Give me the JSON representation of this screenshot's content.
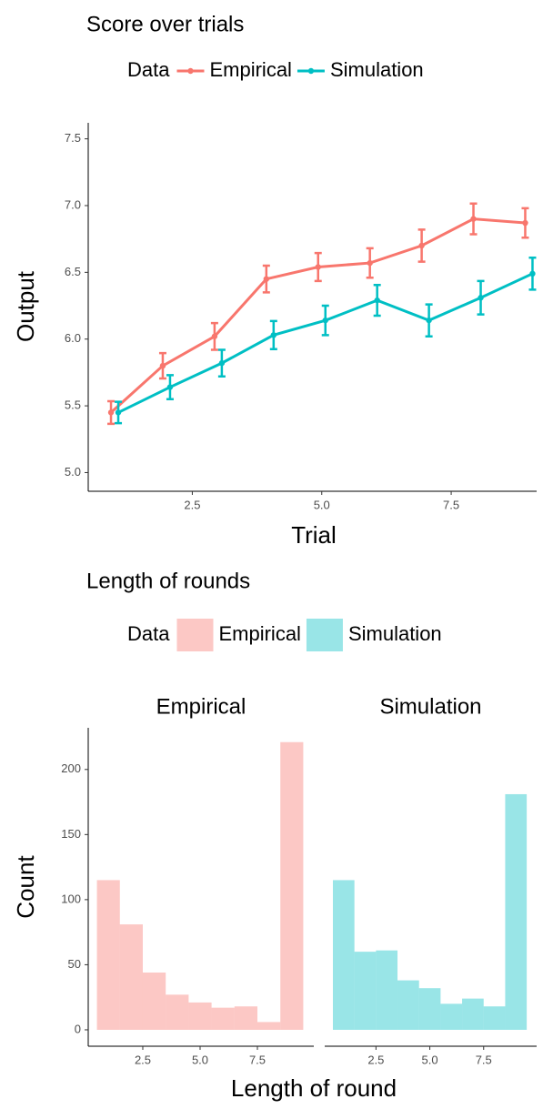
{
  "chart_data": [
    {
      "type": "line",
      "title": "Score over trials",
      "legend_title": "Data",
      "x_label": "Trial",
      "y_label": "Output",
      "x": [
        1,
        2,
        3,
        4,
        5,
        6,
        7,
        8,
        9
      ],
      "series": [
        {
          "name": "Empirical",
          "color": "#F8766D",
          "values": [
            5.45,
            5.8,
            6.02,
            6.45,
            6.54,
            6.57,
            6.7,
            6.9,
            6.87
          ],
          "errors": [
            0.085,
            0.095,
            0.1,
            0.1,
            0.105,
            0.11,
            0.12,
            0.115,
            0.11
          ]
        },
        {
          "name": "Simulation",
          "color": "#00BFC4",
          "values": [
            5.45,
            5.64,
            5.82,
            6.03,
            6.14,
            6.29,
            6.14,
            6.31,
            6.49
          ],
          "errors": [
            0.08,
            0.09,
            0.1,
            0.105,
            0.11,
            0.115,
            0.12,
            0.125,
            0.12
          ]
        }
      ],
      "xlim": [
        0.49,
        9.15
      ],
      "ylim": [
        4.86,
        7.62
      ],
      "xticks": [
        2.5,
        {
          "value": 5,
          "label": "5.0"
        },
        7.5
      ],
      "yticks": [
        {
          "value": 5,
          "label": "5.0"
        },
        5.5,
        {
          "value": 6,
          "label": "6.0"
        },
        6.5,
        {
          "value": 7,
          "label": "7.0"
        },
        7.5
      ]
    },
    {
      "type": "histogram",
      "title": "Length of rounds",
      "legend_title": "Data",
      "x_label": "Length of round",
      "y_label": "Count",
      "bins": [
        0.5,
        1.5,
        2.5,
        3.5,
        4.5,
        5.5,
        6.5,
        7.5,
        8.5,
        9.5
      ],
      "series": [
        {
          "name": "Empirical",
          "color": "#F8766D",
          "values": [
            115,
            81,
            44,
            27,
            21,
            17,
            18,
            6,
            221
          ]
        },
        {
          "name": "Simulation",
          "color": "#00BFC4",
          "values": [
            115,
            60,
            61,
            38,
            32,
            20,
            24,
            18,
            181
          ]
        }
      ],
      "xlim": [
        0.12,
        9.96
      ],
      "ylim": [
        -12.6,
        232
      ],
      "xticks": [
        2.5,
        {
          "value": 5,
          "label": "5.0"
        },
        7.5
      ],
      "yticks": [
        0,
        50,
        100,
        150,
        200
      ]
    }
  ]
}
